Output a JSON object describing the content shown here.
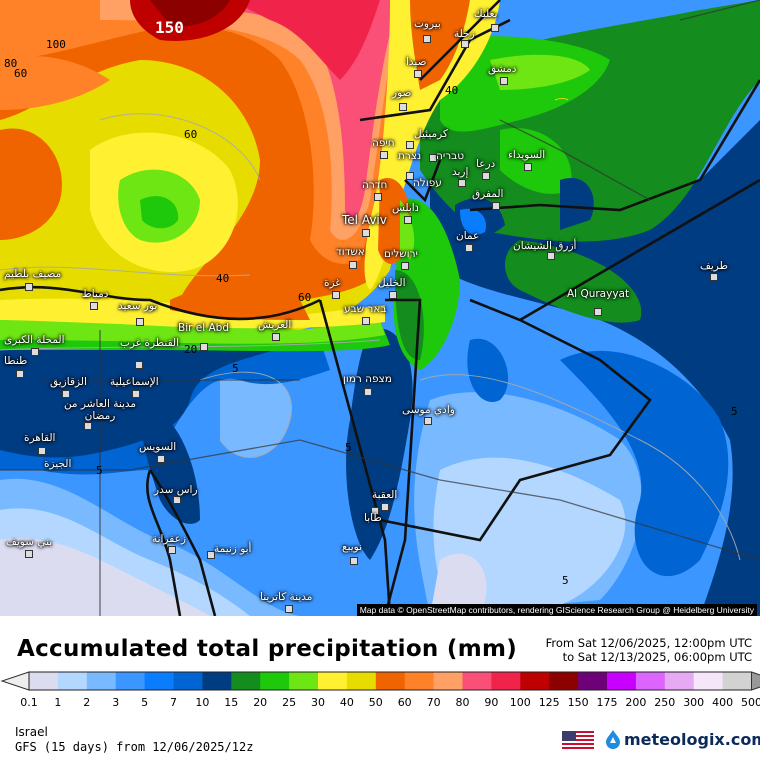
{
  "map": {
    "attribution": "Map data © OpenStreetMap contributors, rendering GIScience Research Group @ Heidelberg University",
    "isolines": [
      "150",
      "100",
      "80",
      "60",
      "60",
      "40",
      "40",
      "60",
      "20",
      "5",
      "5",
      "5",
      "5",
      "5",
      "5"
    ],
    "cities": [
      "بيروت",
      "زحلة",
      "بعلبك",
      "صيدا",
      "دمشق",
      "صور",
      "كرميئيل",
      "חיפה",
      "נצרת",
      "טבריה",
      "עפולה",
      "إربد",
      "درعا",
      "السويداء",
      "חדרה",
      "المفرق",
      "נابلس",
      "Tel Aviv",
      "عمان",
      "ירושלים",
      "אשדוד",
      "أزرق الشيشان",
      "الخليل",
      "غزة",
      "Al Qurayyat",
      "طريف",
      "באר שבע",
      "بور سعيد",
      "مصيف بلطيم",
      "دمياط",
      "Bir el Abd",
      "العريش",
      "المحلة الكبرى",
      "القنطرة غرب",
      "طنطا",
      "الزقازيق",
      "الإسماعيلية",
      "مدينة العاشر من رمضان",
      "القاهرة",
      "الجيزة",
      "السويس",
      "راس سدر",
      "מצפה רמון",
      "وادي موسى",
      "العقبة",
      "طابا",
      "نويبع",
      "زعفرانة",
      "أبو زنيمة",
      "بني سويف",
      "مدينة كاترينا"
    ]
  },
  "legend": {
    "title": "Accumulated total precipitation (mm)",
    "period_from": "From Sat 12/06/2025, 12:00pm UTC",
    "period_to": "to Sat 12/13/2025, 06:00pm UTC",
    "ticks": [
      "0.1",
      "1",
      "2",
      "3",
      "5",
      "7",
      "10",
      "15",
      "20",
      "25",
      "30",
      "40",
      "50",
      "60",
      "70",
      "80",
      "90",
      "100",
      "125",
      "150",
      "175",
      "200",
      "250",
      "300",
      "400",
      "500"
    ],
    "colors": [
      "#dcdcf0",
      "#b4d7ff",
      "#78b9ff",
      "#3c96ff",
      "#0a7dff",
      "#0064d2",
      "#003c82",
      "#148c1e",
      "#1ec80a",
      "#6ee614",
      "#fff032",
      "#e6dc00",
      "#f06400",
      "#ff8228",
      "#ffa064",
      "#fa5078",
      "#f0234b",
      "#be0000",
      "#8c0000",
      "#6e0078",
      "#c800ff",
      "#dc64ff",
      "#e6aaf5",
      "#f5e6fa",
      "#d2d2d2"
    ],
    "under_color": "#eeeeee",
    "over_color": "#999999"
  },
  "footer": {
    "region": "Israel",
    "model": "GFS (15 days) from  12/06/2025/12z",
    "brand": "meteologix.com",
    "flag_icon": "us-flag-icon"
  }
}
